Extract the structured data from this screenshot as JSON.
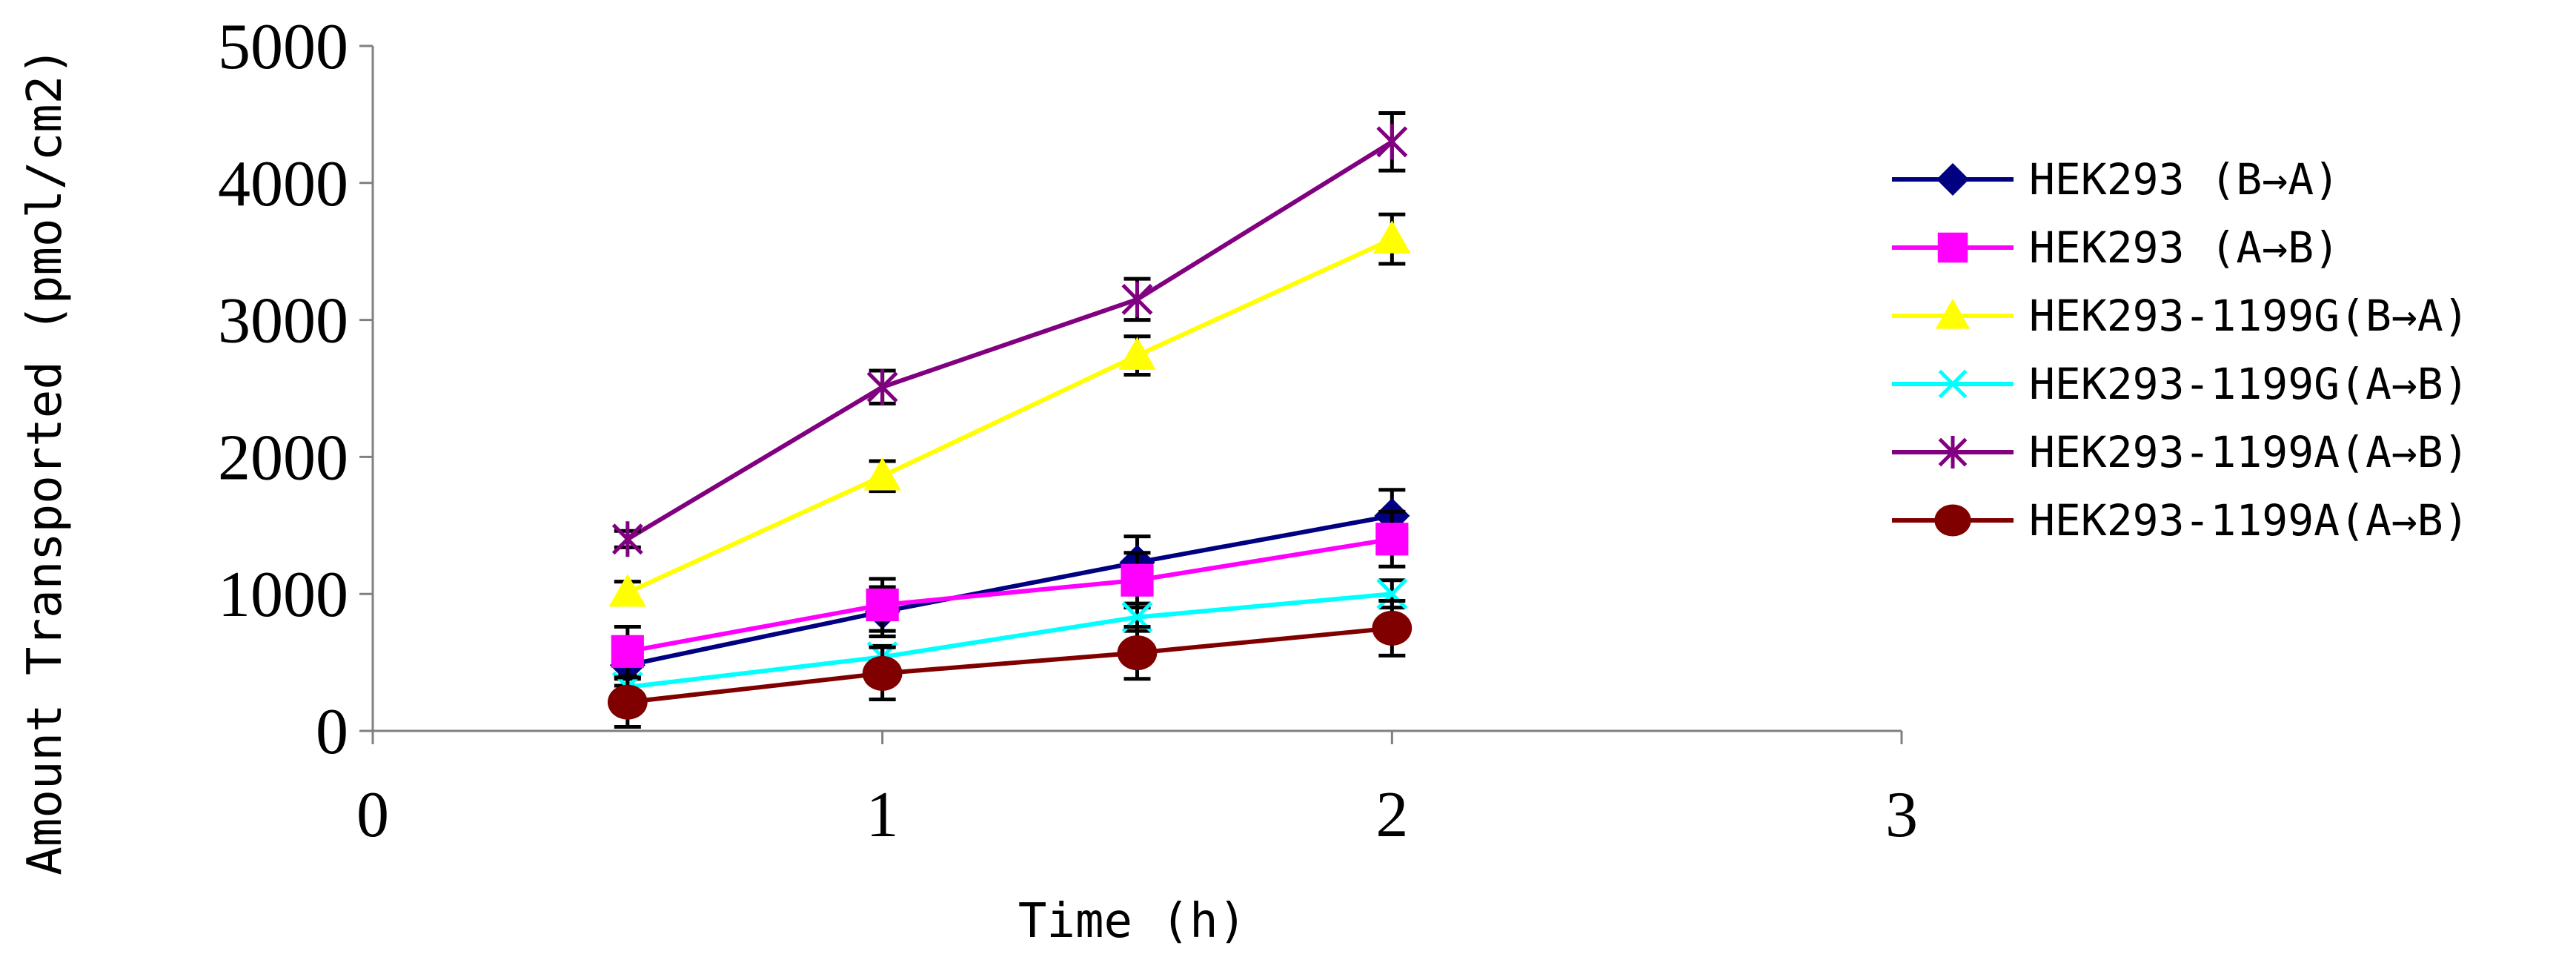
{
  "chart_data": {
    "type": "line",
    "title": "",
    "xlabel": "Time (h)",
    "ylabel": "Amount Transported (pmol/cm2)",
    "xlim": [
      0,
      3
    ],
    "ylim": [
      0,
      5000
    ],
    "x_ticks": [
      "0",
      "1",
      "2",
      "3"
    ],
    "y_ticks": [
      "0",
      "1000",
      "2000",
      "3000",
      "4000",
      "5000"
    ],
    "legend_position": "right",
    "x": [
      0.5,
      1,
      1.5,
      2
    ],
    "series": [
      {
        "name": "HEK293 (B→A)",
        "color": "#000080",
        "marker": "diamond",
        "values": [
          480,
          870,
          1230,
          1570
        ],
        "errors": [
          150,
          180,
          190,
          190
        ]
      },
      {
        "name": "HEK293 (A→B)",
        "color": "#FF00FF",
        "marker": "square",
        "values": [
          580,
          920,
          1100,
          1400
        ],
        "errors": [
          180,
          190,
          200,
          200
        ]
      },
      {
        "name": "HEK293-1199G(B→A)",
        "color": "#FFFF00",
        "marker": "triangle",
        "values": [
          1010,
          1860,
          2740,
          3590
        ],
        "errors": [
          80,
          110,
          140,
          180
        ]
      },
      {
        "name": "HEK293-1199G(A→B)",
        "color": "#00FFFF",
        "marker": "x",
        "values": [
          320,
          540,
          830,
          1000
        ],
        "errors": [
          60,
          80,
          100,
          100
        ]
      },
      {
        "name": "HEK293-1199A(A→B)",
        "color": "#800080",
        "marker": "star",
        "values": [
          1400,
          2510,
          3150,
          4300
        ],
        "errors": [
          60,
          120,
          150,
          210
        ]
      },
      {
        "name": "HEK293-1199A(A→B)",
        "color": "#800000",
        "marker": "circle",
        "values": [
          210,
          420,
          570,
          750
        ],
        "errors": [
          180,
          190,
          190,
          200
        ]
      }
    ]
  }
}
